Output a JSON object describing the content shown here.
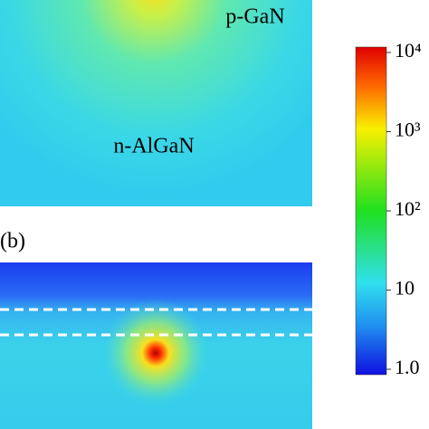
{
  "panels": [
    {
      "labels": [
        "p-GaN",
        "n-AlGaN"
      ]
    },
    {
      "label": "(b)"
    }
  ],
  "colorbar": {
    "scale": "log",
    "lim": [
      1,
      10000
    ],
    "ticks": [
      {
        "value": 10000,
        "label": "10⁴"
      },
      {
        "value": 1000,
        "label": "10³"
      },
      {
        "value": 100,
        "label": "10²"
      },
      10,
      {
        "value": 1,
        "label": "1.0"
      }
    ]
  }
}
